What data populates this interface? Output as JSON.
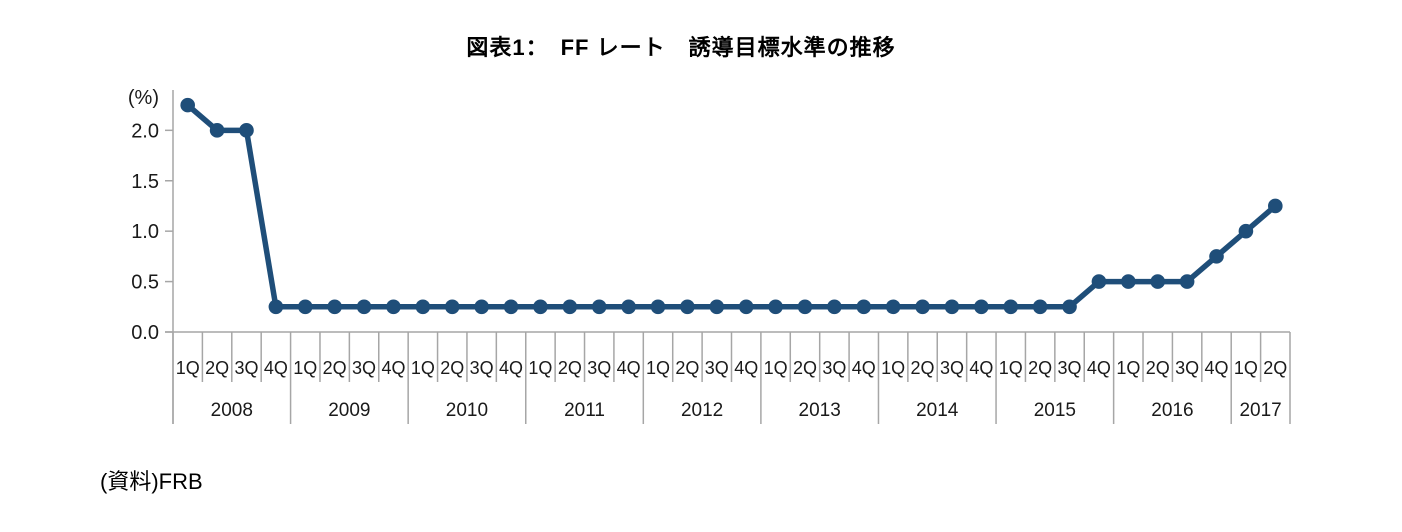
{
  "title": "図表1：　FF レート　誘導目標水準の推移",
  "source": {
    "label": "(資料)FRB"
  },
  "colors": {
    "line": "#1F4E79",
    "marker": "#1F4E79",
    "axis": "#A6A6A6",
    "label_text": "#1A1A1A",
    "background": "#FFFFFF"
  },
  "chart_data": {
    "type": "line",
    "title": "図表1： FF レート 誘導目標水準の推移",
    "ylabel": "(%)",
    "xlabel": "",
    "ylim": [
      0,
      2.4
    ],
    "yticks": [
      "0.0",
      "0.5",
      "1.0",
      "1.5",
      "2.0"
    ],
    "grid": false,
    "legend": "none",
    "series_name": "FFレート誘導目標水準",
    "years": [
      {
        "year": "2008",
        "quarters": [
          "1Q",
          "2Q",
          "3Q",
          "4Q"
        ]
      },
      {
        "year": "2009",
        "quarters": [
          "1Q",
          "2Q",
          "3Q",
          "4Q"
        ]
      },
      {
        "year": "2010",
        "quarters": [
          "1Q",
          "2Q",
          "3Q",
          "4Q"
        ]
      },
      {
        "year": "2011",
        "quarters": [
          "1Q",
          "2Q",
          "3Q",
          "4Q"
        ]
      },
      {
        "year": "2012",
        "quarters": [
          "1Q",
          "2Q",
          "3Q",
          "4Q"
        ]
      },
      {
        "year": "2013",
        "quarters": [
          "1Q",
          "2Q",
          "3Q",
          "4Q"
        ]
      },
      {
        "year": "2014",
        "quarters": [
          "1Q",
          "2Q",
          "3Q",
          "4Q"
        ]
      },
      {
        "year": "2015",
        "quarters": [
          "1Q",
          "2Q",
          "3Q",
          "4Q"
        ]
      },
      {
        "year": "2016",
        "quarters": [
          "1Q",
          "2Q",
          "3Q",
          "4Q"
        ]
      },
      {
        "year": "2017",
        "quarters": [
          "1Q",
          "2Q"
        ]
      }
    ],
    "values": [
      2.25,
      2.0,
      2.0,
      0.25,
      0.25,
      0.25,
      0.25,
      0.25,
      0.25,
      0.25,
      0.25,
      0.25,
      0.25,
      0.25,
      0.25,
      0.25,
      0.25,
      0.25,
      0.25,
      0.25,
      0.25,
      0.25,
      0.25,
      0.25,
      0.25,
      0.25,
      0.25,
      0.25,
      0.25,
      0.25,
      0.25,
      0.5,
      0.5,
      0.5,
      0.5,
      0.75,
      1.0,
      1.25
    ]
  }
}
